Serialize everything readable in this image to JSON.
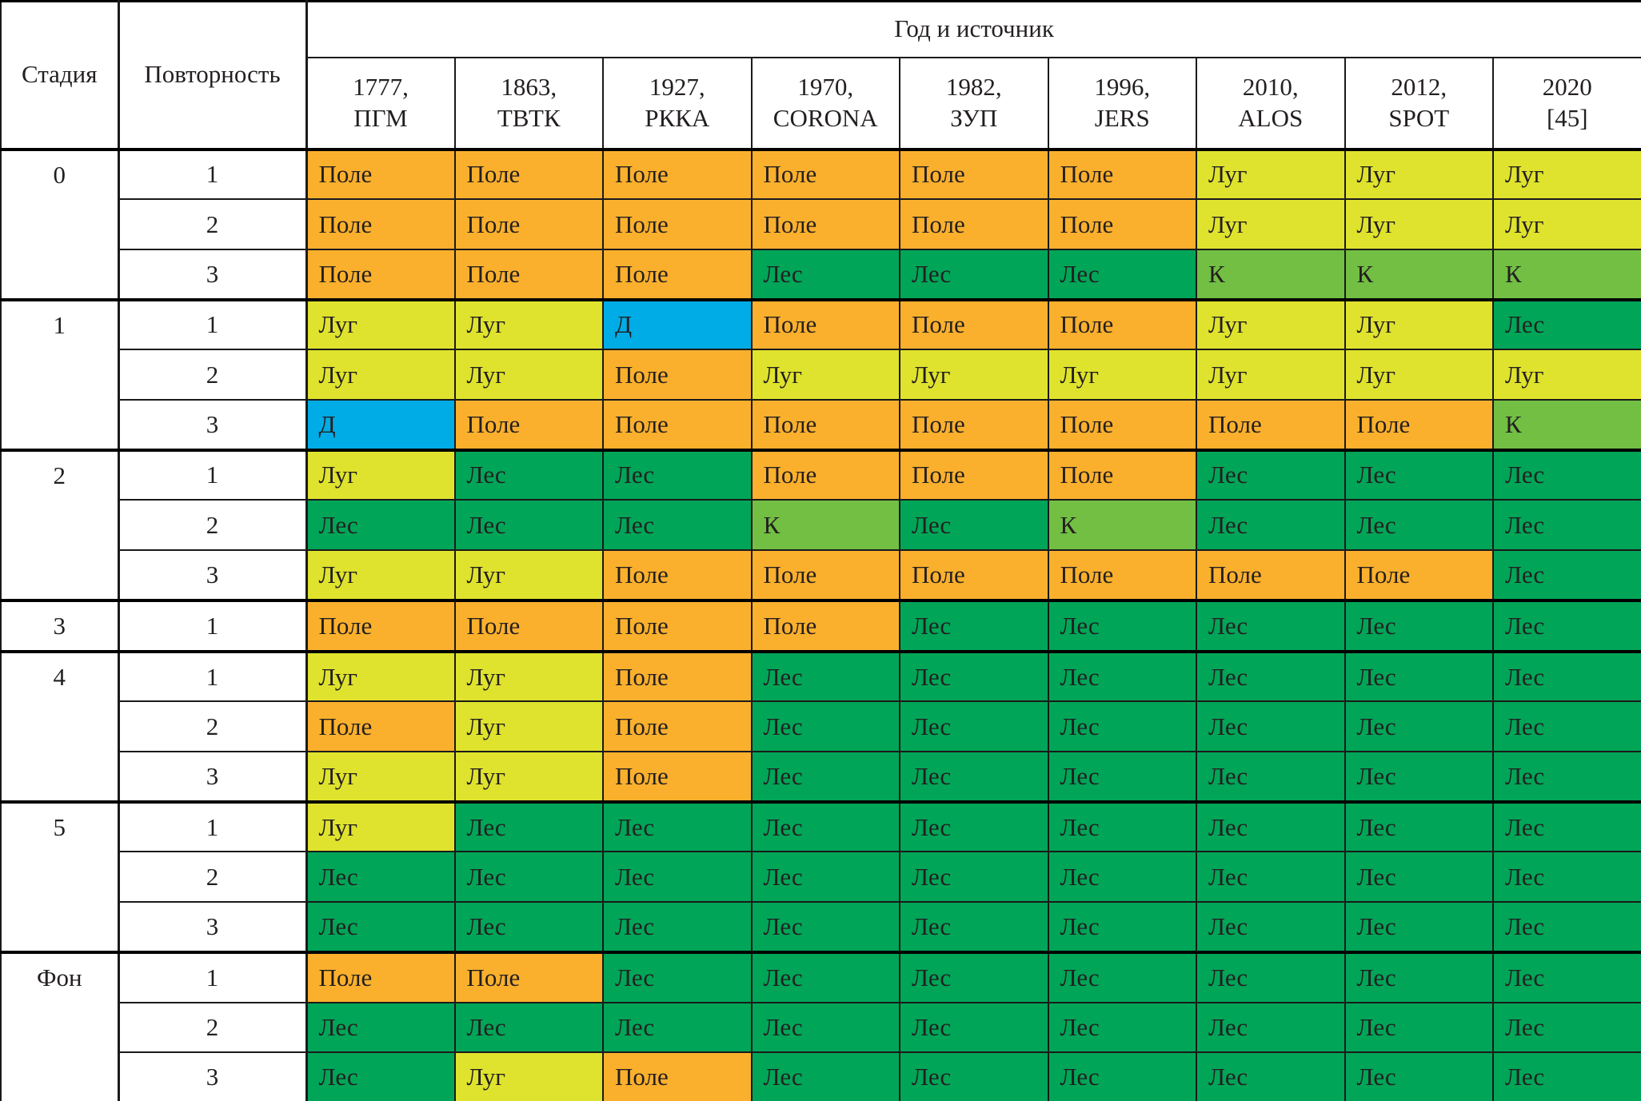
{
  "table": {
    "corner": {
      "stage_label": "Стадия",
      "repetition_label": "Повторность"
    },
    "year_source_label": "Год и источник",
    "columns": [
      {
        "line1": "1777,",
        "line2": "ПГМ"
      },
      {
        "line1": "1863,",
        "line2": "ТВТК"
      },
      {
        "line1": "1927,",
        "line2": "РККА"
      },
      {
        "line1": "1970,",
        "line2": "CORONA"
      },
      {
        "line1": "1982,",
        "line2": "ЗУП"
      },
      {
        "line1": "1996,",
        "line2": "JERS"
      },
      {
        "line1": "2010,",
        "line2": "ALOS"
      },
      {
        "line1": "2012,",
        "line2": "SPOT"
      },
      {
        "line1": "2020",
        "line2": "[45]"
      }
    ],
    "legend_colors": {
      "Поле": "#FBB02D",
      "Луг": "#DFE32D",
      "Лес": "#00A558",
      "К": "#72BF44",
      "Д": "#00ACE6"
    },
    "text_color": "#231f20",
    "groups": [
      {
        "stage": "0",
        "rows": [
          {
            "rep": "1",
            "cells": [
              "Поле",
              "Поле",
              "Поле",
              "Поле",
              "Поле",
              "Поле",
              "Луг",
              "Луг",
              "Луг"
            ]
          },
          {
            "rep": "2",
            "cells": [
              "Поле",
              "Поле",
              "Поле",
              "Поле",
              "Поле",
              "Поле",
              "Луг",
              "Луг",
              "Луг"
            ]
          },
          {
            "rep": "3",
            "cells": [
              "Поле",
              "Поле",
              "Поле",
              "Лес",
              "Лес",
              "Лес",
              "К",
              "К",
              "К"
            ]
          }
        ]
      },
      {
        "stage": "1",
        "rows": [
          {
            "rep": "1",
            "cells": [
              "Луг",
              "Луг",
              "Д",
              "Поле",
              "Поле",
              "Поле",
              "Луг",
              "Луг",
              "Лес"
            ]
          },
          {
            "rep": "2",
            "cells": [
              "Луг",
              "Луг",
              "Поле",
              "Луг",
              "Луг",
              "Луг",
              "Луг",
              "Луг",
              "Луг"
            ]
          },
          {
            "rep": "3",
            "cells": [
              "Д",
              "Поле",
              "Поле",
              "Поле",
              "Поле",
              "Поле",
              "Поле",
              "Поле",
              "К"
            ]
          }
        ]
      },
      {
        "stage": "2",
        "rows": [
          {
            "rep": "1",
            "cells": [
              "Луг",
              "Лес",
              "Лес",
              "Поле",
              "Поле",
              "Поле",
              "Лес",
              "Лес",
              "Лес"
            ]
          },
          {
            "rep": "2",
            "cells": [
              "Лес",
              "Лес",
              "Лес",
              "К",
              "Лес",
              "К",
              "Лес",
              "Лес",
              "Лес"
            ]
          },
          {
            "rep": "3",
            "cells": [
              "Луг",
              "Луг",
              "Поле",
              "Поле",
              "Поле",
              "Поле",
              "Поле",
              "Поле",
              "Лес"
            ]
          }
        ]
      },
      {
        "stage": "3",
        "rows": [
          {
            "rep": "1",
            "cells": [
              "Поле",
              "Поле",
              "Поле",
              "Поле",
              "Лес",
              "Лес",
              "Лес",
              "Лес",
              "Лес"
            ]
          }
        ]
      },
      {
        "stage": "4",
        "rows": [
          {
            "rep": "1",
            "cells": [
              "Луг",
              "Луг",
              "Поле",
              "Лес",
              "Лес",
              "Лес",
              "Лес",
              "Лес",
              "Лес"
            ]
          },
          {
            "rep": "2",
            "cells": [
              "Поле",
              "Луг",
              "Поле",
              "Лес",
              "Лес",
              "Лес",
              "Лес",
              "Лес",
              "Лес"
            ]
          },
          {
            "rep": "3",
            "cells": [
              "Луг",
              "Луг",
              "Поле",
              "Лес",
              "Лес",
              "Лес",
              "Лес",
              "Лес",
              "Лес"
            ]
          }
        ]
      },
      {
        "stage": "5",
        "rows": [
          {
            "rep": "1",
            "cells": [
              "Луг",
              "Лес",
              "Лес",
              "Лес",
              "Лес",
              "Лес",
              "Лес",
              "Лес",
              "Лес"
            ]
          },
          {
            "rep": "2",
            "cells": [
              "Лес",
              "Лес",
              "Лес",
              "Лес",
              "Лес",
              "Лес",
              "Лес",
              "Лес",
              "Лес"
            ]
          },
          {
            "rep": "3",
            "cells": [
              "Лес",
              "Лес",
              "Лес",
              "Лес",
              "Лес",
              "Лес",
              "Лес",
              "Лес",
              "Лес"
            ]
          }
        ]
      },
      {
        "stage": "Фон",
        "rows": [
          {
            "rep": "1",
            "cells": [
              "Поле",
              "Поле",
              "Лес",
              "Лес",
              "Лес",
              "Лес",
              "Лес",
              "Лес",
              "Лес"
            ]
          },
          {
            "rep": "2",
            "cells": [
              "Лес",
              "Лес",
              "Лес",
              "Лес",
              "Лес",
              "Лес",
              "Лес",
              "Лес",
              "Лес"
            ]
          },
          {
            "rep": "3",
            "cells": [
              "Лес",
              "Луг",
              "Поле",
              "Лес",
              "Лес",
              "Лес",
              "Лес",
              "Лес",
              "Лес"
            ]
          }
        ]
      }
    ]
  }
}
